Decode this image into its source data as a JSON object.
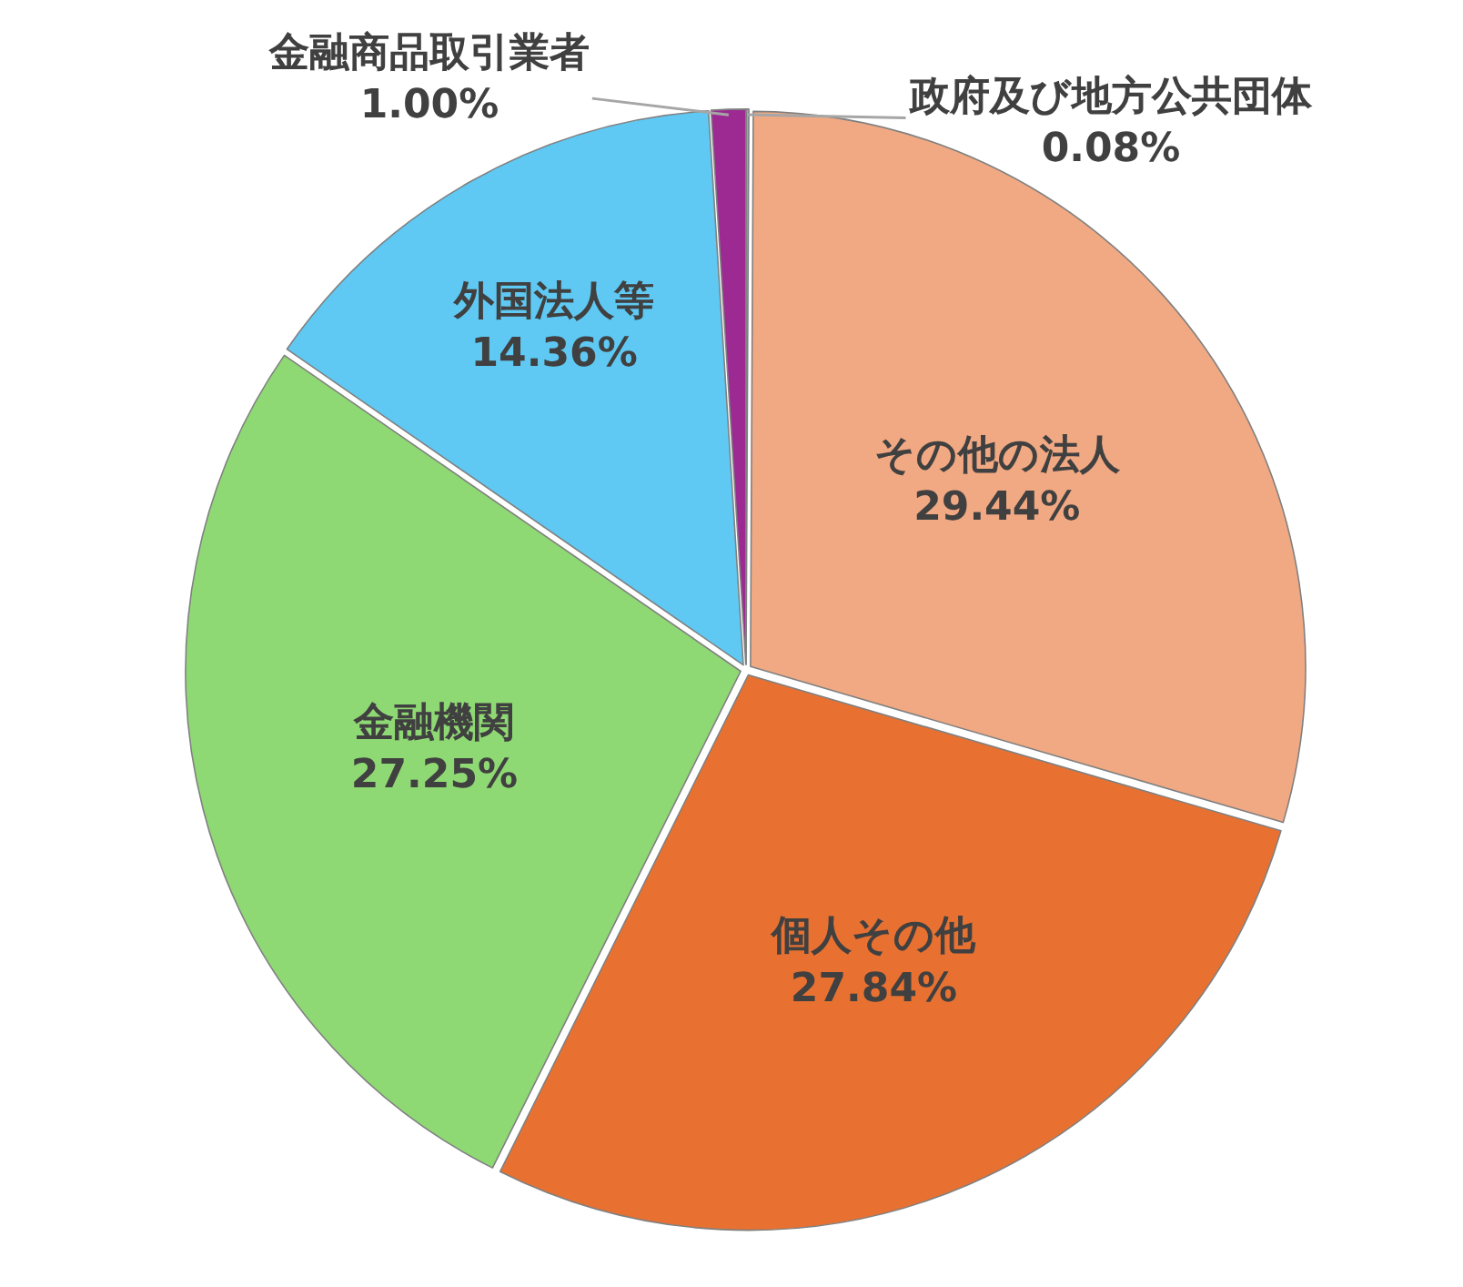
{
  "chart_data": {
    "type": "pie",
    "categories": [
      "政府及び地方公共団体",
      "その他の法人",
      "個人その他",
      "金融機関",
      "外国法人等",
      "金融商品取引業者"
    ],
    "values": [
      0.08,
      29.44,
      27.84,
      27.25,
      14.36,
      1.0
    ],
    "colors": [
      "#a5a5a5",
      "#f1a983",
      "#e87131",
      "#8fd974",
      "#5fc9f3",
      "#9c2a92"
    ],
    "value_labels": [
      "0.08%",
      "29.44%",
      "27.84%",
      "27.25%",
      "14.36%",
      "1.00%"
    ]
  }
}
